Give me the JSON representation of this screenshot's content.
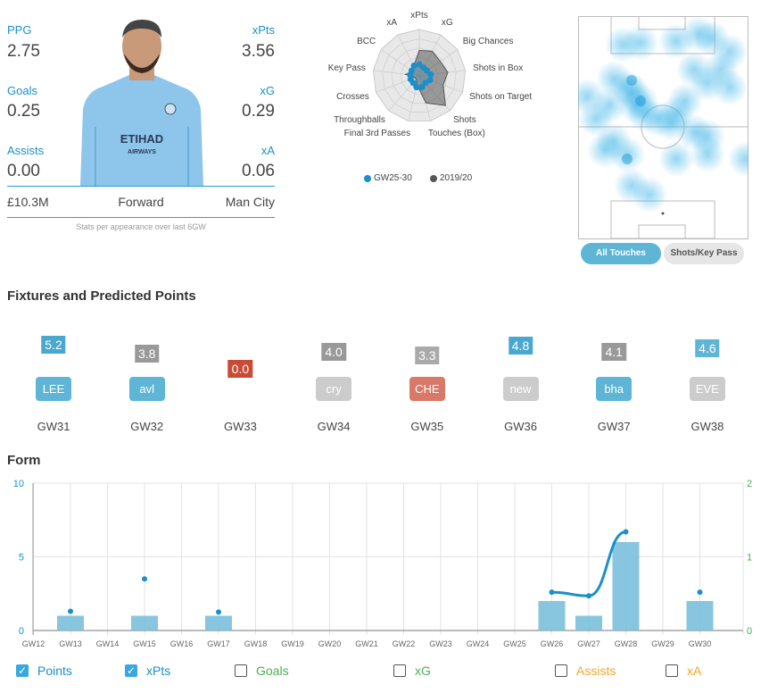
{
  "player": {
    "stats": [
      {
        "label": "PPG",
        "value": "2.75"
      },
      {
        "label": "xPts",
        "value": "3.56"
      },
      {
        "label": "Goals",
        "value": "0.25"
      },
      {
        "label": "xG",
        "value": "0.29"
      },
      {
        "label": "Assists",
        "value": "0.00"
      },
      {
        "label": "xA",
        "value": "0.06"
      }
    ],
    "price": "£10.3M",
    "position": "Forward",
    "team": "Man City",
    "note": "Stats per appearance over last 6GW",
    "shirt_text": "ETIHAD AIRWAYS"
  },
  "radar": {
    "axes": [
      "xPts",
      "xG",
      "Big Chances",
      "Shots in Box",
      "Shots on Target",
      "Shots",
      "Touches (Box)",
      "Final 3rd Passes",
      "Throughballs",
      "Crosses",
      "Key Pass",
      "BCC",
      "xA"
    ],
    "series": [
      {
        "name": "GW25-30",
        "color": "#1a8fc9",
        "values": [
          0.25,
          0.2,
          0.2,
          0.25,
          0.25,
          0.2,
          0.25,
          0.25,
          0.2,
          0.2,
          0.2,
          0.2,
          0.25
        ]
      },
      {
        "name": "2019/20",
        "color": "#555555",
        "values": [
          0.55,
          0.6,
          0.55,
          0.62,
          0.55,
          0.85,
          0.6,
          0.2,
          0.1,
          0.1,
          0.3,
          0.15,
          0.25
        ]
      }
    ]
  },
  "heatmap": {
    "buttons": [
      "All Touches",
      "Shots/Key Pass"
    ],
    "active": "All Touches"
  },
  "fixtures": {
    "title": "Fixtures and Predicted Points",
    "items": [
      {
        "gw": "GW31",
        "points": "5.2",
        "opponent": "LEE",
        "pcolor": "#4aa8cf",
        "tcolor": "#5fb5d6"
      },
      {
        "gw": "GW32",
        "points": "3.8",
        "opponent": "avl",
        "pcolor": "#999999",
        "tcolor": "#5fb5d6"
      },
      {
        "gw": "GW33",
        "points": "0.0",
        "opponent": "",
        "pcolor": "#c84b36",
        "tcolor": ""
      },
      {
        "gw": "GW34",
        "points": "4.0",
        "opponent": "cry",
        "pcolor": "#999999",
        "tcolor": "#cccccc"
      },
      {
        "gw": "GW35",
        "points": "3.3",
        "opponent": "CHE",
        "pcolor": "#aaaaaa",
        "tcolor": "#d9796a"
      },
      {
        "gw": "GW36",
        "points": "4.8",
        "opponent": "new",
        "pcolor": "#4aa8cf",
        "tcolor": "#cccccc"
      },
      {
        "gw": "GW37",
        "points": "4.1",
        "opponent": "bha",
        "pcolor": "#999999",
        "tcolor": "#5fb5d6"
      },
      {
        "gw": "GW38",
        "points": "4.6",
        "opponent": "EVE",
        "pcolor": "#5fb5d6",
        "tcolor": "#cccccc"
      }
    ]
  },
  "form": {
    "title": "Form",
    "chart_data": {
      "type": "bar",
      "categories": [
        "GW12",
        "GW13",
        "GW14",
        "GW15",
        "GW16",
        "GW17",
        "GW18",
        "GW19",
        "GW20",
        "GW21",
        "GW22",
        "GW23",
        "GW24",
        "GW25",
        "GW26",
        "GW27",
        "GW28",
        "GW29",
        "GW30"
      ],
      "series": [
        {
          "name": "Points",
          "type": "bar",
          "color": "#7bbfdb",
          "values": [
            null,
            1,
            null,
            1,
            null,
            1,
            null,
            null,
            null,
            null,
            null,
            null,
            null,
            null,
            2,
            1,
            6,
            null,
            2
          ]
        },
        {
          "name": "xPts",
          "type": "line",
          "color": "#1a8fc9",
          "values": [
            null,
            1.3,
            null,
            3.5,
            null,
            1.25,
            null,
            null,
            null,
            null,
            null,
            null,
            null,
            null,
            2.6,
            2.35,
            6.7,
            null,
            2.6
          ]
        }
      ],
      "ylim": [
        0,
        10
      ],
      "yticks": [
        "0",
        "5",
        "10"
      ],
      "y2lim": [
        0,
        2
      ],
      "y2ticks": [
        "0",
        "1",
        "2"
      ],
      "grid": true
    },
    "legend": [
      {
        "label": "Points",
        "checked": true,
        "color": "#1a8fc9"
      },
      {
        "label": "xPts",
        "checked": true,
        "color": "#1a8fc9"
      },
      {
        "label": "Goals",
        "checked": false,
        "color": "#4caf50"
      },
      {
        "label": "xG",
        "checked": false,
        "color": "#4caf50"
      },
      {
        "label": "Assists",
        "checked": false,
        "color": "#f5a623"
      },
      {
        "label": "xA",
        "checked": false,
        "color": "#f5a623"
      }
    ]
  }
}
